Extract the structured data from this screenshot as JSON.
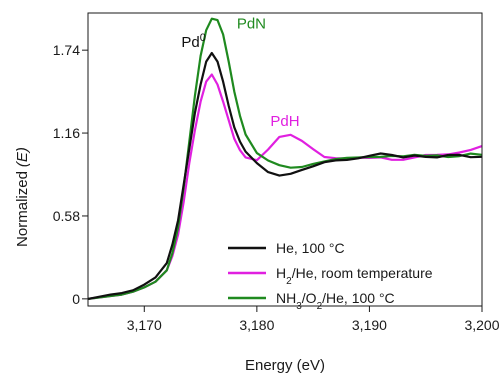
{
  "chart_data": {
    "type": "line",
    "title": "",
    "xlabel": "Energy (eV)",
    "ylabel": "Normalized (E)",
    "ylabel_parts": {
      "prefix": "Normalized",
      "symbol": "E"
    },
    "xlim": [
      3165,
      3200
    ],
    "ylim": [
      -0.05,
      2.0
    ],
    "xticks": [
      3170,
      3180,
      3190,
      3200
    ],
    "xtick_labels": [
      "3,170",
      "3,180",
      "3,190",
      "3,200"
    ],
    "yticks": [
      0,
      0.58,
      1.16,
      1.74
    ],
    "ytick_labels": [
      "0",
      "0.58",
      "1.16",
      "1.74"
    ],
    "grid": false,
    "legend_position": "lower-right",
    "series": [
      {
        "name": "He, 100 °C",
        "legend_parts": [
          [
            "He, 100 °C",
            ""
          ]
        ],
        "color": "#111111",
        "x": [
          3165,
          3167,
          3168,
          3169,
          3170,
          3171,
          3172,
          3172.5,
          3173,
          3173.5,
          3174,
          3174.5,
          3175,
          3175.5,
          3176,
          3176.5,
          3177,
          3177.5,
          3178,
          3178.5,
          3179,
          3180,
          3181,
          3182,
          3183,
          3184,
          3185,
          3186,
          3187,
          3188,
          3189,
          3190,
          3191,
          3192,
          3193,
          3194,
          3195,
          3196,
          3197,
          3198,
          3199,
          3200
        ],
        "y": [
          0.0,
          0.03,
          0.04,
          0.06,
          0.1,
          0.15,
          0.25,
          0.38,
          0.55,
          0.8,
          1.05,
          1.3,
          1.5,
          1.66,
          1.72,
          1.66,
          1.52,
          1.35,
          1.2,
          1.1,
          1.03,
          0.95,
          0.89,
          0.87,
          0.88,
          0.9,
          0.92,
          0.95,
          0.97,
          0.98,
          0.99,
          1.0,
          1.01,
          1.0,
          0.99,
          1.01,
          1.0,
          0.99,
          1.0,
          1.0,
          0.99,
          1.0
        ]
      },
      {
        "name": "H2/He, room temperature",
        "legend_parts": [
          [
            "H",
            ""
          ],
          [
            "2",
            "sub"
          ],
          [
            "/He, room temperature",
            ""
          ]
        ],
        "color": "#e020e0",
        "x": [
          3165,
          3167,
          3168,
          3169,
          3170,
          3171,
          3172,
          3172.5,
          3173,
          3173.5,
          3174,
          3174.5,
          3175,
          3175.5,
          3176,
          3176.5,
          3177,
          3177.5,
          3178,
          3178.5,
          3179,
          3180,
          3181,
          3182,
          3183,
          3184,
          3185,
          3186,
          3187,
          3188,
          3189,
          3190,
          3191,
          3192,
          3193,
          3194,
          3195,
          3196,
          3197,
          3198,
          3199,
          3200
        ],
        "y": [
          0.0,
          0.02,
          0.03,
          0.05,
          0.08,
          0.12,
          0.2,
          0.3,
          0.45,
          0.68,
          0.95,
          1.18,
          1.38,
          1.52,
          1.57,
          1.5,
          1.38,
          1.25,
          1.12,
          1.04,
          0.99,
          0.97,
          1.05,
          1.13,
          1.14,
          1.1,
          1.05,
          1.0,
          0.99,
          0.98,
          0.98,
          0.98,
          0.99,
          0.98,
          0.98,
          0.99,
          1.0,
          1.0,
          1.01,
          1.03,
          1.05,
          1.07
        ]
      },
      {
        "name": "NH3/O2/He, 100 °C",
        "legend_parts": [
          [
            "NH",
            ""
          ],
          [
            "3",
            "sub"
          ],
          [
            "/O",
            ""
          ],
          [
            "2",
            "sub"
          ],
          [
            "/He, 100 °C",
            ""
          ]
        ],
        "color": "#1f8a1f",
        "x": [
          3165,
          3167,
          3168,
          3169,
          3170,
          3171,
          3172,
          3172.5,
          3173,
          3173.5,
          3174,
          3174.5,
          3175,
          3175.5,
          3176,
          3176.5,
          3177,
          3177.5,
          3178,
          3178.5,
          3179,
          3180,
          3181,
          3182,
          3183,
          3184,
          3185,
          3186,
          3187,
          3188,
          3189,
          3190,
          3191,
          3192,
          3193,
          3194,
          3195,
          3196,
          3197,
          3198,
          3199,
          3200
        ],
        "y": [
          0.0,
          0.02,
          0.03,
          0.05,
          0.08,
          0.12,
          0.2,
          0.32,
          0.5,
          0.78,
          1.1,
          1.42,
          1.7,
          1.88,
          1.96,
          1.95,
          1.85,
          1.66,
          1.45,
          1.28,
          1.15,
          1.02,
          0.96,
          0.93,
          0.92,
          0.93,
          0.95,
          0.96,
          0.97,
          0.98,
          0.99,
          1.0,
          1.0,
          1.0,
          0.99,
          1.0,
          1.0,
          1.01,
          1.0,
          1.0,
          1.01,
          1.0
        ]
      }
    ],
    "annotations": [
      {
        "key": "pd0",
        "parts": [
          [
            "Pd",
            ""
          ],
          [
            "0",
            "sup"
          ]
        ],
        "x": 3176.0,
        "y": 1.72,
        "color": "#111111",
        "anchor": "end",
        "dx": -6,
        "dy": -6
      },
      {
        "key": "pdn",
        "parts": [
          [
            "PdN",
            ""
          ]
        ],
        "x": 3176.8,
        "y": 1.96,
        "color": "#1f8a1f",
        "anchor": "start",
        "dx": 16,
        "dy": 10
      },
      {
        "key": "pdh",
        "parts": [
          [
            "PdH",
            ""
          ]
        ],
        "x": 3182.5,
        "y": 1.14,
        "color": "#e020e0",
        "anchor": "middle",
        "dx": 0,
        "dy": -10
      }
    ]
  }
}
